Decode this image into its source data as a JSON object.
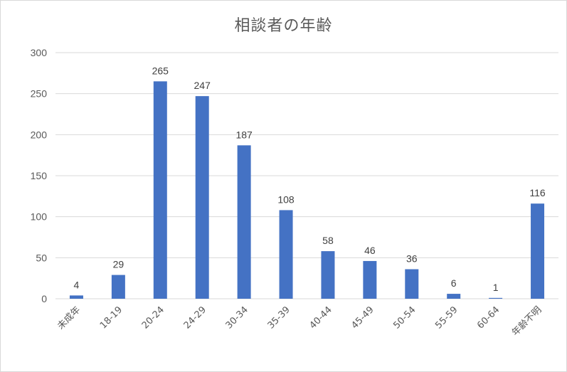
{
  "chart_data": {
    "type": "bar",
    "title": "相談者の年齢",
    "categories": [
      "未成年",
      "18-19",
      "20-24",
      "24-29",
      "30-34",
      "35-39",
      "40-44",
      "45-49",
      "50-54",
      "55-59",
      "60-64",
      "年齢不明"
    ],
    "values": [
      4,
      29,
      265,
      247,
      187,
      108,
      58,
      46,
      36,
      6,
      1,
      116
    ],
    "data_labels": [
      "4",
      "29",
      "265",
      "247",
      "187",
      "108",
      "58",
      "46",
      "36",
      "6",
      "1",
      "116"
    ],
    "ylim": [
      0,
      300
    ],
    "yticks": [
      0,
      50,
      100,
      150,
      200,
      250,
      300
    ],
    "ytick_labels": [
      "0",
      "50",
      "100",
      "150",
      "200",
      "250",
      "300"
    ],
    "grid": true,
    "legend": "none",
    "bar_color": "#4472C4",
    "grid_color": "#d9d9d9"
  }
}
